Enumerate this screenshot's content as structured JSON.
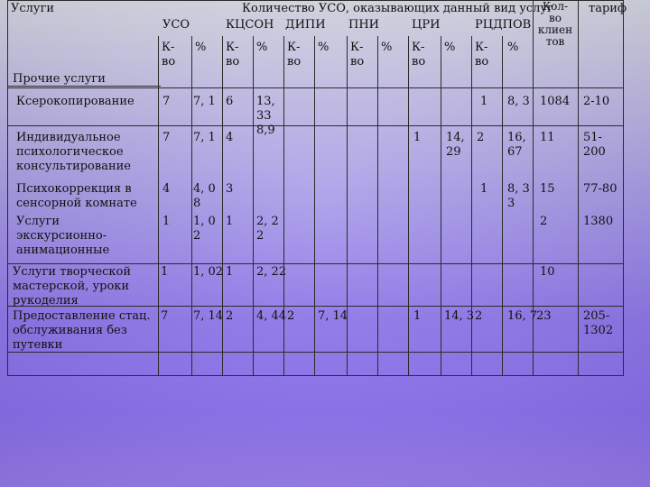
{
  "header": {
    "services": "Услуги",
    "uso_count": "Количество УСО, оказывающих данный вид услуг",
    "clients": "Кол-\nво\nклиен\nтов",
    "tariff": "тариф"
  },
  "columns": {
    "uso": "УСО",
    "kcson": "КЦСОН",
    "dipi": "ДИПИ",
    "pni": "ПНИ",
    "cri": "ЦРИ",
    "rcdpov": "РЦДПОВ"
  },
  "sub": {
    "count": "К-\nво",
    "percent": "%"
  },
  "section": {
    "other": "Прочие услуги"
  },
  "rows": [
    {
      "name": "Ксерокопирование",
      "c1": "7",
      "c2": "7, 1",
      "c3": "6",
      "c4": "13,\n33\n8,9",
      "c5": "1",
      "c6": "8, 3",
      "c7": "1084",
      "c8": "2-10"
    },
    {
      "name": "Индивидуальное\nпсихологическое\nконсультирование",
      "c1": "7",
      "c2": "7, 1",
      "c3": "4",
      "c4": "",
      "c5": "1",
      "c6": "14,\n29",
      "c7": "2",
      "c8": "16,\n67",
      "c9": "11",
      "c10": "51-\n200"
    },
    {
      "name": "Психокоррекция в\nсенсорной комнате",
      "c1": "4",
      "c2": "4, 0\n8",
      "c3": "3",
      "c5": "1",
      "c6": "8, 3\n3",
      "c7": "15",
      "c8": "77-80"
    },
    {
      "name": "Услуги\nэкскурсионно-\nанимационные",
      "c1": "1",
      "c2": "1, 0\n2",
      "c3": "1",
      "c4": "2, 2\n2",
      "c7": "2",
      "c8": "1380"
    },
    {
      "name": "Услуги творческой\nмастерской, уроки\nрукоделия",
      "c1": "1",
      "c2": "1, 02",
      "c3": "1",
      "c4": "2, 22",
      "c7": "10"
    },
    {
      "name": "Предоставление стац.\nобслуживания без\nпутевки",
      "c1": "7",
      "c2": "7, 14",
      "c3": "2",
      "c4": "4, 44",
      "c5": "2",
      "c6": "7, 14",
      "c9": "1",
      "c10": "14, 3",
      "c11": "2",
      "c12": "16, 7",
      "c13": "23",
      "c14": "205-\n1302"
    }
  ]
}
